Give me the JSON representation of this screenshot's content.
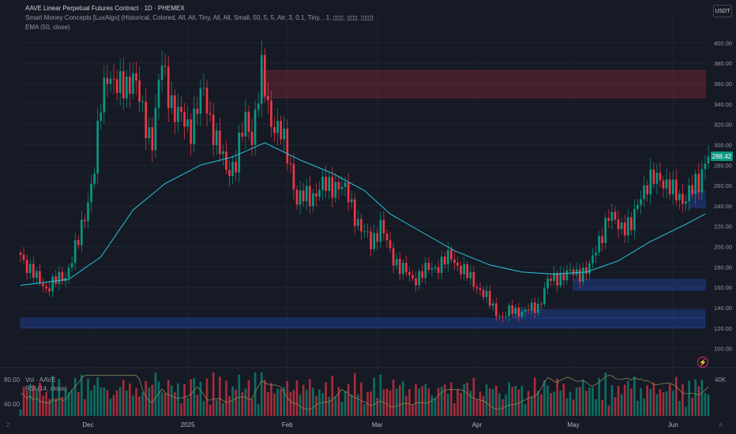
{
  "header": {
    "title": "AAVE Linear Perpetual Futures Contract · 1D · PHEMEX",
    "indicator": "Smart Money Concepts [LuxAlgo] (Historical, Colored, All, All, Tiny, All, All, Small, 50, 5, 5, Atr, 3, 0.1, Tiny, , 1, ▯▯▯, ▯▯▯, ▯▯▯)",
    "ema": "EMA (50, close)",
    "currency": "USDT"
  },
  "last_price": "288.42",
  "lower_pane": {
    "vol_label": "Vol · AAVE",
    "rsi_label": "RSI (14, close)",
    "left_ticks": [
      "80.00",
      "40.00"
    ],
    "right_tick": "40K"
  },
  "corner_labels": {
    "left": "Z",
    "right": "A"
  },
  "colors": {
    "up": "#089981",
    "down": "#f23645",
    "ema": "#26c6da",
    "background": "#161a25",
    "supply_zone": "#f2364533",
    "demand_zone": "#2962ff40",
    "rsi": "#7e8a55"
  },
  "chart_data": {
    "type": "candlestick",
    "symbol": "AAVE",
    "exchange": "PHEMEX",
    "interval": "1D",
    "price_axis": {
      "ticks": [
        100,
        120,
        140,
        160,
        180,
        200,
        220,
        240,
        260,
        280,
        300,
        320,
        340,
        360,
        380,
        400
      ],
      "range": [
        92,
        408
      ]
    },
    "time_axis": {
      "labels": [
        "Dec",
        "2025",
        "Feb",
        "Mar",
        "Apr",
        "May",
        "Jun"
      ],
      "range": [
        "2024-11-10",
        "2025-06-12"
      ]
    },
    "close_series": [
      {
        "date": "2024-11-10",
        "close": 192
      },
      {
        "date": "2024-11-15",
        "close": 168
      },
      {
        "date": "2024-11-18",
        "close": 160
      },
      {
        "date": "2024-11-24",
        "close": 172
      },
      {
        "date": "2024-11-28",
        "close": 205
      },
      {
        "date": "2024-12-03",
        "close": 275
      },
      {
        "date": "2024-12-05",
        "close": 340
      },
      {
        "date": "2024-12-07",
        "close": 375
      },
      {
        "date": "2024-12-10",
        "close": 352
      },
      {
        "date": "2024-12-15",
        "close": 368
      },
      {
        "date": "2024-12-18",
        "close": 330
      },
      {
        "date": "2024-12-21",
        "close": 305
      },
      {
        "date": "2024-12-24",
        "close": 380
      },
      {
        "date": "2024-12-28",
        "close": 330
      },
      {
        "date": "2025-01-02",
        "close": 318
      },
      {
        "date": "2025-01-06",
        "close": 352
      },
      {
        "date": "2025-01-10",
        "close": 302
      },
      {
        "date": "2025-01-13",
        "close": 276
      },
      {
        "date": "2025-01-16",
        "close": 283
      },
      {
        "date": "2025-01-19",
        "close": 325
      },
      {
        "date": "2025-01-21",
        "close": 310
      },
      {
        "date": "2025-01-24",
        "close": 368
      },
      {
        "date": "2025-01-27",
        "close": 325
      },
      {
        "date": "2025-01-30",
        "close": 310
      },
      {
        "date": "2025-02-02",
        "close": 280
      },
      {
        "date": "2025-02-04",
        "close": 245
      },
      {
        "date": "2025-02-08",
        "close": 250
      },
      {
        "date": "2025-02-12",
        "close": 258
      },
      {
        "date": "2025-02-16",
        "close": 262
      },
      {
        "date": "2025-02-20",
        "close": 250
      },
      {
        "date": "2025-02-24",
        "close": 215
      },
      {
        "date": "2025-02-27",
        "close": 205
      },
      {
        "date": "2025-03-02",
        "close": 220
      },
      {
        "date": "2025-03-05",
        "close": 195
      },
      {
        "date": "2025-03-08",
        "close": 180
      },
      {
        "date": "2025-03-12",
        "close": 168
      },
      {
        "date": "2025-03-16",
        "close": 176
      },
      {
        "date": "2025-03-20",
        "close": 182
      },
      {
        "date": "2025-03-24",
        "close": 190
      },
      {
        "date": "2025-03-28",
        "close": 175
      },
      {
        "date": "2025-04-02",
        "close": 158
      },
      {
        "date": "2025-04-06",
        "close": 140
      },
      {
        "date": "2025-04-09",
        "close": 130
      },
      {
        "date": "2025-04-12",
        "close": 138
      },
      {
        "date": "2025-04-16",
        "close": 136
      },
      {
        "date": "2025-04-20",
        "close": 142
      },
      {
        "date": "2025-04-23",
        "close": 165
      },
      {
        "date": "2025-04-27",
        "close": 172
      },
      {
        "date": "2025-05-02",
        "close": 174
      },
      {
        "date": "2025-05-06",
        "close": 178
      },
      {
        "date": "2025-05-09",
        "close": 208
      },
      {
        "date": "2025-05-12",
        "close": 228
      },
      {
        "date": "2025-05-16",
        "close": 222
      },
      {
        "date": "2025-05-19",
        "close": 218
      },
      {
        "date": "2025-05-22",
        "close": 255
      },
      {
        "date": "2025-05-25",
        "close": 262
      },
      {
        "date": "2025-05-28",
        "close": 270
      },
      {
        "date": "2025-06-01",
        "close": 252
      },
      {
        "date": "2025-06-04",
        "close": 248
      },
      {
        "date": "2025-06-07",
        "close": 255
      },
      {
        "date": "2025-06-09",
        "close": 262
      },
      {
        "date": "2025-06-11",
        "close": 288.42
      }
    ],
    "ema_50": [
      {
        "date": "2024-11-10",
        "value": 162
      },
      {
        "date": "2024-11-25",
        "value": 168
      },
      {
        "date": "2024-12-05",
        "value": 190
      },
      {
        "date": "2024-12-15",
        "value": 236
      },
      {
        "date": "2024-12-25",
        "value": 262
      },
      {
        "date": "2025-01-05",
        "value": 280
      },
      {
        "date": "2025-01-15",
        "value": 288
      },
      {
        "date": "2025-01-25",
        "value": 302
      },
      {
        "date": "2025-02-05",
        "value": 285
      },
      {
        "date": "2025-02-15",
        "value": 272
      },
      {
        "date": "2025-02-25",
        "value": 255
      },
      {
        "date": "2025-03-05",
        "value": 232
      },
      {
        "date": "2025-03-15",
        "value": 214
      },
      {
        "date": "2025-03-25",
        "value": 196
      },
      {
        "date": "2025-04-05",
        "value": 182
      },
      {
        "date": "2025-04-15",
        "value": 175
      },
      {
        "date": "2025-04-25",
        "value": 173
      },
      {
        "date": "2025-05-05",
        "value": 175
      },
      {
        "date": "2025-05-15",
        "value": 186
      },
      {
        "date": "2025-05-25",
        "value": 205
      },
      {
        "date": "2025-06-05",
        "value": 222
      },
      {
        "date": "2025-06-11",
        "value": 232
      }
    ],
    "zones": [
      {
        "kind": "supply",
        "start": "2025-01-24",
        "end": "2025-06-11",
        "low": 346,
        "high": 373
      },
      {
        "kind": "demand",
        "start": "2024-11-10",
        "end": "2025-06-11",
        "low": 120,
        "high": 130
      },
      {
        "kind": "demand",
        "start": "2025-04-12",
        "end": "2025-06-11",
        "low": 130,
        "high": 138
      },
      {
        "kind": "demand",
        "start": "2025-05-01",
        "end": "2025-06-11",
        "low": 157,
        "high": 168
      },
      {
        "kind": "demand",
        "start": "2025-06-06",
        "end": "2025-06-11",
        "low": 238,
        "high": 255
      }
    ]
  }
}
